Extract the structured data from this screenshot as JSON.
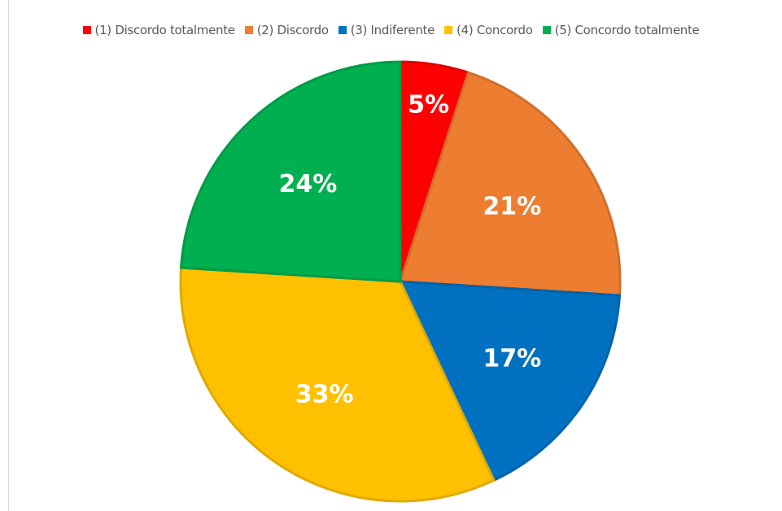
{
  "chart_data": {
    "type": "pie",
    "title": "",
    "legend_position": "top",
    "start_angle_deg": 0,
    "direction": "clockwise",
    "slices": [
      {
        "label": "(1) Discordo totalmente",
        "value": 5,
        "display": "5%",
        "color": "#ff0000"
      },
      {
        "label": "(2) Discordo",
        "value": 21,
        "display": "21%",
        "color": "#ed7d31"
      },
      {
        "label": "(3) Indiferente",
        "value": 17,
        "display": "17%",
        "color": "#0070c0"
      },
      {
        "label": "(4) Concordo",
        "value": 33,
        "display": "33%",
        "color": "#ffc000"
      },
      {
        "label": "(5) Concordo totalmente",
        "value": 24,
        "display": "24%",
        "color": "#00b050"
      }
    ]
  }
}
